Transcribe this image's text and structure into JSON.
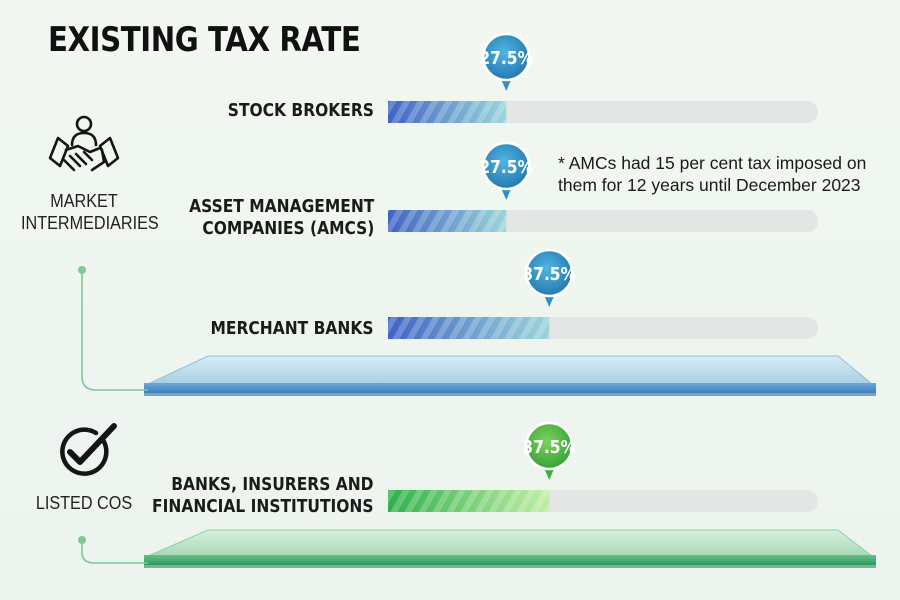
{
  "title": "EXISTING TAX RATE",
  "groups": [
    {
      "label_lines": [
        "MARKET",
        "INTERMEDIARIES"
      ],
      "icon": "handshake-icon"
    },
    {
      "label_lines": [
        "LISTED COS"
      ],
      "icon": "checkmark-circle-icon"
    }
  ],
  "note_lines": [
    "* AMCs had 15 per cent tax imposed on",
    "them for 12 years until December 2023"
  ],
  "colors": {
    "blue_dark": "#3f63c4",
    "blue_light": "#8fd0d8",
    "green_dark": "#2fb04a",
    "green_light": "#b7ea9c",
    "track": "#e4e6e5",
    "blue_badge": "#2f8fc8",
    "green_badge": "#3fae3a"
  },
  "chart_data": {
    "type": "bar",
    "title": "EXISTING TAX RATE",
    "unit": "%",
    "xlim": [
      0,
      100
    ],
    "categories": [
      "STOCK BROKERS",
      "ASSET MANAGEMENT COMPANIES (AMCS)",
      "MERCHANT BANKS",
      "BANKS, INSURERS AND FINANCIAL INSTITUTIONS"
    ],
    "category_lines": [
      [
        "STOCK BROKERS"
      ],
      [
        "ASSET MANAGEMENT",
        "COMPANIES (AMCS)"
      ],
      [
        "MERCHANT BANKS"
      ],
      [
        "BANKS, INSURERS AND",
        "FINANCIAL INSTITUTIONS"
      ]
    ],
    "values": [
      27.5,
      27.5,
      37.5,
      37.5
    ],
    "value_labels": [
      "27.5%",
      "27.5%",
      "37.5%",
      "37.5%"
    ],
    "groups": [
      "MARKET INTERMEDIARIES",
      "MARKET INTERMEDIARIES",
      "MARKET INTERMEDIARIES",
      "LISTED COS"
    ],
    "grid": false,
    "legend": "none"
  }
}
